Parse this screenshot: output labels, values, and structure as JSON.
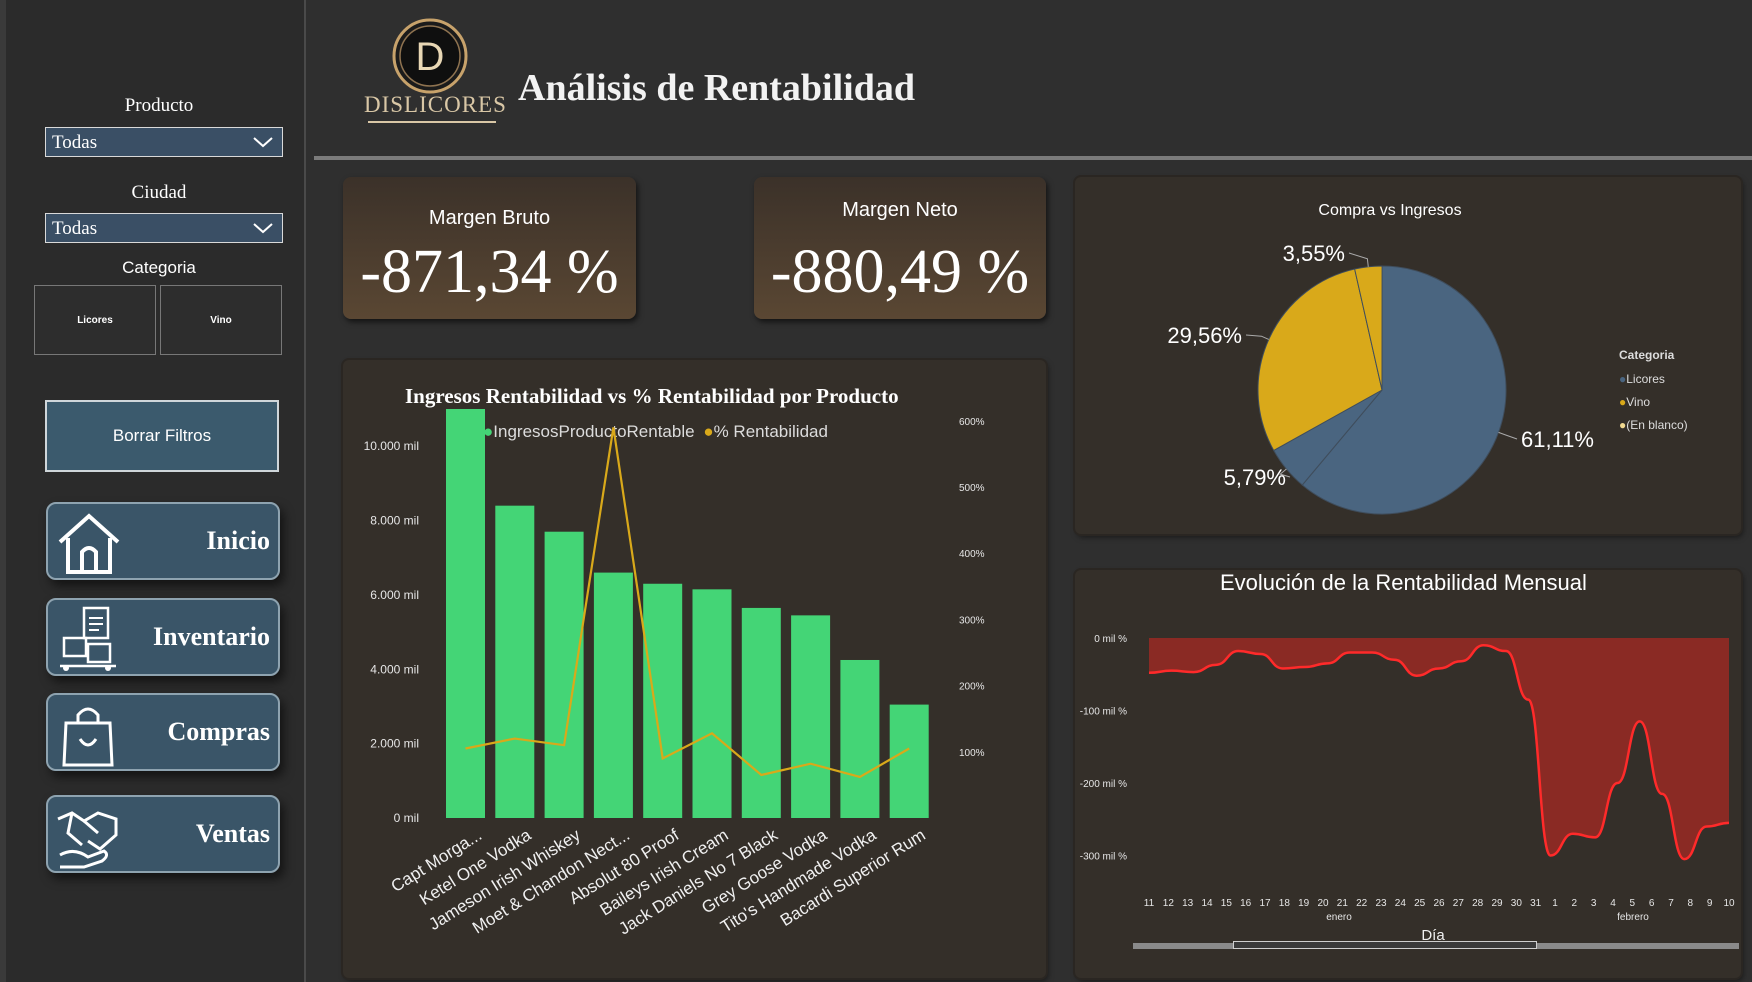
{
  "filters": {
    "producto_label": "Producto",
    "producto_value": "Todas",
    "ciudad_label": "Ciudad",
    "ciudad_value": "Todas",
    "categoria_label": "Categoria",
    "categoria_options": [
      "Licores",
      "Vino"
    ],
    "clear_label": "Borrar Filtros"
  },
  "nav": {
    "inicio": "Inicio",
    "inventario": "Inventario",
    "compras": "Compras",
    "ventas": "Ventas"
  },
  "header": {
    "logo_letter": "D",
    "logo_text": "DISLICORES",
    "title": "Análisis de Rentabilidad"
  },
  "kpis": {
    "margen_bruto_label": "Margen Bruto",
    "margen_bruto_value": "-871,34 %",
    "margen_neto_label": "Margen Neto",
    "margen_neto_value": "-880,49 %"
  },
  "colors": {
    "bar_green": "#44d576",
    "line_gold": "#d9a91a",
    "pie_blue": "#4a6580",
    "pie_gold": "#d9a91a",
    "area_red": "#8a2a24",
    "line_red": "#ff2a2a"
  },
  "chart_data": [
    {
      "type": "bar",
      "title": "Ingresos Rentabilidad vs % Rentabilidad por Producto",
      "legend": [
        "IngresosProductoRentable",
        "% Rentabilidad"
      ],
      "categories": [
        "Capt Morga...",
        "Ketel One Vodka",
        "Jameson Irish Whiskey",
        "Moet & Chandon Nect...",
        "Absolut 80 Proof",
        "Baileys Irish Cream",
        "Jack Daniels No 7 Black",
        "Grey Goose Vodka",
        "Tito's Handmade Vodka",
        "Bacardi Superior Rum"
      ],
      "series": [
        {
          "name": "IngresosProductoRentable",
          "axis": "left",
          "values": [
            11000,
            8400,
            7700,
            6600,
            6300,
            6150,
            5650,
            5450,
            4250,
            3050
          ]
        },
        {
          "name": "% Rentabilidad",
          "axis": "right",
          "values": [
            105,
            120,
            110,
            590,
            90,
            128,
            65,
            82,
            62,
            105
          ]
        }
      ],
      "y_left_ticks": [
        "0 mil",
        "2.000 mil",
        "4.000 mil",
        "6.000 mil",
        "8.000 mil",
        "10.000 mil"
      ],
      "ylim_left": [
        0,
        11000
      ],
      "y_right_ticks": [
        "100%",
        "200%",
        "300%",
        "400%",
        "500%",
        "600%"
      ],
      "ylim_right": [
        0,
        600
      ]
    },
    {
      "type": "pie",
      "title": "Compra vs Ingresos",
      "legend_title": "Categoria",
      "legend": [
        "Licores",
        "Vino",
        "(En blanco)"
      ],
      "slices": [
        {
          "label": "Licores",
          "pct": 61.11,
          "text": "61,11%"
        },
        {
          "label": "Licores",
          "pct": 5.79,
          "text": "5,79%"
        },
        {
          "label": "Vino",
          "pct": 29.56,
          "text": "29,56%"
        },
        {
          "label": "Vino",
          "pct": 3.55,
          "text": "3,55%"
        }
      ]
    },
    {
      "type": "area",
      "title": "Evolución de la Rentabilidad Mensual",
      "xlabel": "Día",
      "x_ticks": [
        "11",
        "12",
        "13",
        "14",
        "15",
        "16",
        "17",
        "18",
        "19",
        "20",
        "21",
        "22",
        "23",
        "24",
        "25",
        "26",
        "27",
        "28",
        "29",
        "30",
        "31",
        "1",
        "2",
        "3",
        "4",
        "5",
        "6",
        "7",
        "8",
        "9",
        "10"
      ],
      "month_labels": [
        "enero",
        "febrero"
      ],
      "y_ticks": [
        "0 mil %",
        "-100 mil %",
        "-200 mil %",
        "-300 mil %"
      ],
      "ylim": [
        -320,
        0
      ],
      "values": [
        -48,
        -45,
        -47,
        -37,
        -18,
        -22,
        -42,
        -40,
        -35,
        -20,
        -20,
        -30,
        -52,
        -42,
        -32,
        -10,
        -18,
        -85,
        -300,
        -270,
        -275,
        -200,
        -115,
        -215,
        -305,
        -260,
        -255
      ]
    }
  ]
}
